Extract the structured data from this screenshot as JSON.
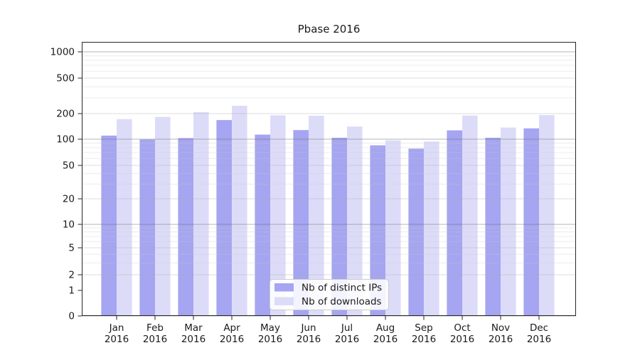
{
  "figure": {
    "title": "Pbase 2016",
    "background": "#ffffff"
  },
  "chart_data": {
    "type": "bar",
    "title": "Pbase 2016",
    "categories": [
      "Jan",
      "Feb",
      "Mar",
      "Apr",
      "May",
      "Jun",
      "Jul",
      "Aug",
      "Sep",
      "Oct",
      "Nov",
      "Dec"
    ],
    "year_label": "2016",
    "series": [
      {
        "name": "Nb of distinct IPs",
        "color": "#a5a5f1",
        "values": [
          110,
          99,
          103,
          168,
          113,
          128,
          104,
          85,
          78,
          127,
          104,
          134
        ]
      },
      {
        "name": "Nb of downloads",
        "color": "#dcdcf9",
        "values": [
          172,
          183,
          208,
          245,
          191,
          189,
          141,
          97,
          94,
          190,
          137,
          192
        ]
      }
    ],
    "xlabel": "",
    "ylabel": "",
    "yscale": "symlog",
    "yticks": [
      0,
      1,
      2,
      5,
      10,
      20,
      50,
      100,
      200,
      500,
      1000
    ],
    "ylim": [
      0,
      1300
    ],
    "grid": true,
    "grid_on_top": true,
    "legend_position": "lower center",
    "colors": {
      "spine": "#262626",
      "tick_label": "#1a1a1a",
      "grid_decade": "rgba(110,110,110,0.50)",
      "grid_sub": "rgba(170,170,170,0.40)",
      "grid_minor": "rgba(200,200,200,0.35)",
      "legend_border": "#cccccc",
      "legend_bg": "#ffffff"
    }
  }
}
